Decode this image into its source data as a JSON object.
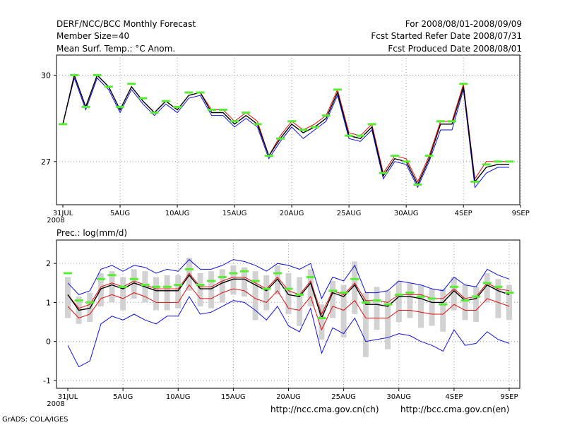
{
  "header": {
    "title": "DERF/NCC/BCC Monthly Forecast",
    "member": "Member Size=40",
    "variable": "Mean Surf. Temp.: °C Anom.",
    "period": "For 2008/08/01-2008/09/09",
    "refer_date": "Fcst Started Refer Date 2008/07/31",
    "produced_date": "Fcst Produced Date 2008/08/01"
  },
  "footer": {
    "grads": "GrADS: COLA/IGES",
    "url_ch": "http://ncc.cma.gov.cn(ch)",
    "url_en": "http://bcc.cma.gov.cn(en)"
  },
  "colors": {
    "frame": "#000000",
    "grid": "#9a9a9a",
    "mean_line": "#000000",
    "red_line": "#e01010",
    "blue_line": "#1010e0",
    "obs_marker": "#55ee33",
    "bar": "#d2d2d2"
  },
  "chart_data": [
    {
      "type": "line",
      "title": "Mean Surf. Temp.: °C Anom.",
      "x_tick_labels": [
        "31JUL",
        "5AUG",
        "10AUG",
        "15AUG",
        "20AUG",
        "25AUG",
        "30AUG",
        "4SEP",
        "9SEP"
      ],
      "x_tick_index": [
        0,
        5,
        10,
        15,
        20,
        25,
        30,
        35,
        40
      ],
      "year_label": "2008",
      "yticks": [
        27,
        30
      ],
      "ylim": [
        25.5,
        30.7
      ],
      "mean": [
        28.3,
        30.0,
        28.9,
        30.0,
        29.6,
        28.8,
        29.6,
        29.1,
        28.7,
        29.1,
        28.8,
        29.3,
        29.4,
        28.7,
        28.7,
        28.3,
        28.6,
        28.3,
        27.2,
        27.8,
        28.3,
        28.0,
        28.2,
        28.5,
        29.4,
        27.9,
        27.8,
        28.2,
        26.5,
        27.1,
        27.0,
        26.2,
        27.1,
        28.3,
        28.3,
        29.6,
        26.3,
        26.8,
        26.9,
        26.9
      ],
      "lower": [
        28.3,
        29.9,
        28.8,
        29.9,
        29.5,
        28.7,
        29.5,
        29.0,
        28.6,
        29.0,
        28.7,
        29.2,
        29.3,
        28.6,
        28.6,
        28.2,
        28.5,
        28.2,
        27.1,
        27.7,
        28.2,
        27.8,
        28.1,
        28.4,
        29.3,
        27.8,
        27.7,
        28.1,
        26.4,
        27.0,
        26.9,
        26.1,
        27.0,
        28.1,
        28.1,
        29.5,
        26.1,
        26.6,
        26.8,
        26.8
      ],
      "upper": [
        28.3,
        30.0,
        28.9,
        30.0,
        29.6,
        28.8,
        29.6,
        29.1,
        28.7,
        29.1,
        28.8,
        29.3,
        29.4,
        28.8,
        28.8,
        28.4,
        28.7,
        28.4,
        27.2,
        27.9,
        28.4,
        28.1,
        28.3,
        28.6,
        29.5,
        28.0,
        27.9,
        28.3,
        26.6,
        27.2,
        27.1,
        26.3,
        27.2,
        28.4,
        28.4,
        29.7,
        26.4,
        27.0,
        27.0,
        27.0
      ],
      "observed": [
        28.3,
        30.0,
        28.9,
        30.0,
        29.6,
        28.9,
        29.7,
        29.2,
        28.7,
        29.1,
        28.9,
        29.4,
        29.4,
        28.8,
        28.8,
        28.4,
        28.7,
        28.3,
        27.2,
        27.8,
        28.4,
        28.1,
        28.2,
        28.6,
        29.5,
        27.9,
        27.9,
        28.3,
        26.6,
        27.2,
        27.0,
        26.2,
        27.2,
        28.4,
        28.4,
        29.7,
        26.3,
        26.9,
        27.0,
        27.0
      ]
    },
    {
      "type": "line",
      "title": "Prec.: log(mm/d)",
      "x_tick_labels": [
        "31JUL",
        "5AUG",
        "10AUG",
        "15AUG",
        "20AUG",
        "25AUG",
        "30AUG",
        "4SEP",
        "9SEP"
      ],
      "x_tick_index": [
        0,
        5,
        10,
        15,
        20,
        25,
        30,
        35,
        40
      ],
      "year_label": "2008",
      "yticks": [
        -1,
        0,
        1,
        2
      ],
      "ylim": [
        -1.2,
        2.6
      ],
      "mean": [
        1.2,
        0.8,
        0.85,
        1.35,
        1.45,
        1.35,
        1.5,
        1.4,
        1.3,
        1.3,
        1.3,
        1.7,
        1.35,
        1.35,
        1.5,
        1.6,
        1.6,
        1.45,
        1.3,
        1.6,
        1.2,
        1.15,
        1.5,
        0.6,
        1.25,
        1.15,
        1.45,
        0.95,
        0.95,
        0.9,
        1.15,
        1.15,
        1.1,
        1.0,
        1.0,
        1.3,
        1.05,
        1.1,
        1.45,
        1.3,
        1.2
      ],
      "red_upper": [
        1.2,
        0.85,
        0.95,
        1.4,
        1.5,
        1.4,
        1.55,
        1.45,
        1.35,
        1.35,
        1.35,
        1.75,
        1.4,
        1.4,
        1.55,
        1.65,
        1.65,
        1.5,
        1.35,
        1.65,
        1.3,
        1.2,
        1.55,
        0.7,
        1.3,
        1.2,
        1.5,
        1.05,
        1.05,
        1.0,
        1.2,
        1.2,
        1.2,
        1.1,
        1.1,
        1.35,
        1.1,
        1.15,
        1.5,
        1.35,
        1.3
      ],
      "red_lower": [
        0.9,
        0.6,
        0.7,
        1.1,
        1.2,
        1.1,
        1.25,
        1.15,
        1.0,
        1.0,
        1.0,
        1.45,
        1.1,
        1.1,
        1.25,
        1.35,
        1.3,
        1.1,
        1.0,
        1.3,
        0.85,
        0.8,
        1.15,
        0.3,
        0.9,
        0.8,
        1.05,
        0.6,
        0.6,
        0.6,
        0.8,
        0.8,
        0.75,
        0.7,
        0.7,
        0.95,
        0.8,
        0.8,
        1.1,
        1.0,
        0.9
      ],
      "blue_upper": [
        1.5,
        1.2,
        1.3,
        1.85,
        1.95,
        1.8,
        1.95,
        1.9,
        1.75,
        1.85,
        1.8,
        2.1,
        1.85,
        1.85,
        1.95,
        2.1,
        2.05,
        1.95,
        1.8,
        2.0,
        1.95,
        1.85,
        2.0,
        1.1,
        1.65,
        1.55,
        1.95,
        1.25,
        1.25,
        1.3,
        1.55,
        1.5,
        1.45,
        1.35,
        1.3,
        1.65,
        1.45,
        1.4,
        1.85,
        1.7,
        1.6
      ],
      "blue_lower": [
        -0.1,
        -0.65,
        -0.5,
        0.45,
        0.65,
        0.55,
        0.7,
        0.55,
        0.45,
        0.65,
        0.65,
        1.15,
        0.7,
        0.75,
        0.9,
        1.05,
        1.0,
        0.8,
        0.55,
        0.9,
        0.4,
        0.25,
        0.85,
        -0.3,
        0.35,
        0.2,
        0.6,
        0.0,
        0.05,
        0.1,
        0.2,
        0.15,
        0.0,
        -0.1,
        -0.25,
        0.3,
        -0.1,
        -0.05,
        0.25,
        0.05,
        -0.05
      ],
      "bar_low": [
        0.6,
        0.45,
        0.5,
        0.9,
        1.0,
        0.8,
        1.1,
        1.0,
        0.8,
        0.8,
        0.85,
        1.3,
        0.9,
        0.85,
        1.0,
        1.2,
        1.15,
        0.55,
        0.8,
        1.2,
        0.7,
        0.4,
        0.9,
        0.05,
        0.6,
        0.1,
        0.7,
        -0.4,
        0.3,
        -0.2,
        0.5,
        0.6,
        0.35,
        0.4,
        0.25,
        0.8,
        0.55,
        0.5,
        1.0,
        0.6,
        0.55
      ],
      "bar_high": [
        1.65,
        1.15,
        1.25,
        1.75,
        1.8,
        1.65,
        1.85,
        1.8,
        1.65,
        1.7,
        1.7,
        2.15,
        1.75,
        1.8,
        1.85,
        1.95,
        1.9,
        1.8,
        1.7,
        1.95,
        1.75,
        1.65,
        1.85,
        0.95,
        1.55,
        1.45,
        2.05,
        1.25,
        1.4,
        1.3,
        1.55,
        1.5,
        1.45,
        1.35,
        1.35,
        1.65,
        1.45,
        1.4,
        1.75,
        1.6,
        1.45
      ],
      "observed": [
        1.75,
        1.05,
        1.0,
        1.6,
        1.7,
        1.4,
        1.6,
        1.45,
        1.4,
        1.4,
        1.45,
        1.85,
        1.45,
        1.55,
        1.65,
        1.75,
        1.8,
        1.55,
        1.35,
        1.75,
        1.35,
        1.2,
        1.65,
        0.6,
        1.3,
        1.25,
        1.6,
        1.0,
        1.05,
        0.95,
        1.2,
        1.25,
        1.15,
        1.1,
        0.95,
        1.4,
        1.05,
        1.15,
        1.5,
        1.4,
        1.25
      ]
    }
  ]
}
